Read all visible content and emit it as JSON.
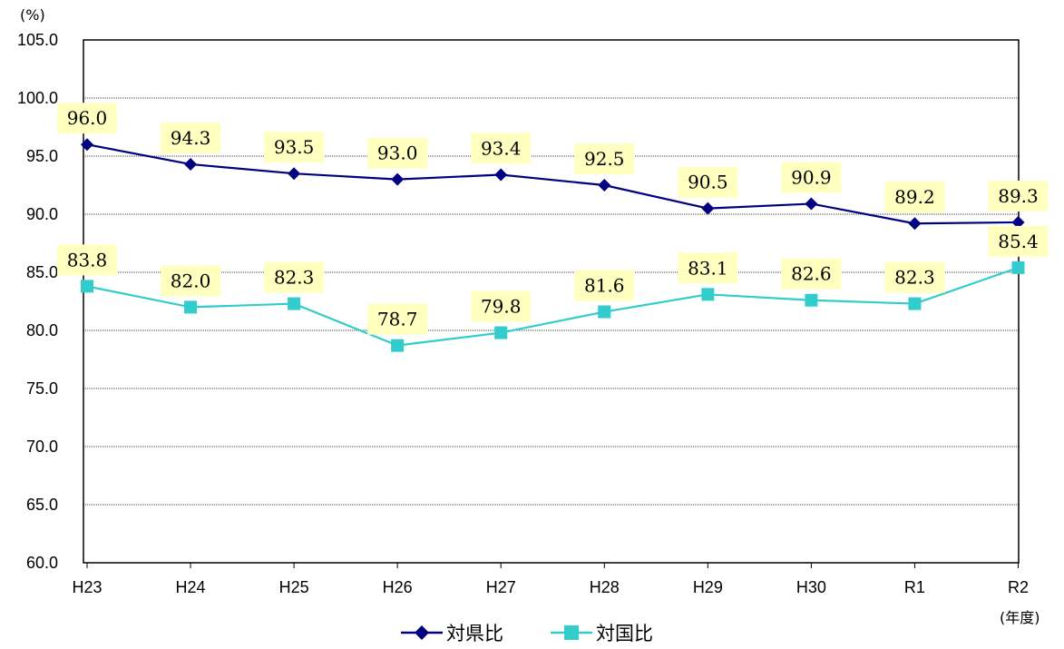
{
  "chart_data": {
    "type": "line",
    "y_unit": "(%)",
    "x_unit": "(年度)",
    "categories": [
      "H23",
      "H24",
      "H25",
      "H26",
      "H27",
      "H28",
      "H29",
      "H30",
      "R1",
      "R2"
    ],
    "ylim": [
      60.0,
      105.0
    ],
    "yticks": [
      "60.0",
      "65.0",
      "70.0",
      "75.0",
      "80.0",
      "85.0",
      "90.0",
      "95.0",
      "100.0",
      "105.0"
    ],
    "ytick_values": [
      60,
      65,
      70,
      75,
      80,
      85,
      90,
      95,
      100,
      105
    ],
    "grid": true,
    "legend_position": "bottom",
    "series": [
      {
        "name": "対県比",
        "color": "#000080",
        "marker": "diamond",
        "values": [
          96.0,
          94.3,
          93.5,
          93.0,
          93.4,
          92.5,
          90.5,
          90.9,
          89.2,
          89.3
        ],
        "labels": [
          "96.0",
          "94.3",
          "93.5",
          "93.0",
          "93.4",
          "92.5",
          "90.5",
          "90.9",
          "89.2",
          "89.3"
        ]
      },
      {
        "name": "対国比",
        "color": "#33CCCC",
        "marker": "square",
        "values": [
          83.8,
          82.0,
          82.3,
          78.7,
          79.8,
          81.6,
          83.1,
          82.6,
          82.3,
          85.4
        ],
        "labels": [
          "83.8",
          "82.0",
          "82.3",
          "78.7",
          "79.8",
          "81.6",
          "83.1",
          "82.6",
          "82.3",
          "85.4"
        ]
      }
    ],
    "label_background": "#FFFFC0"
  }
}
